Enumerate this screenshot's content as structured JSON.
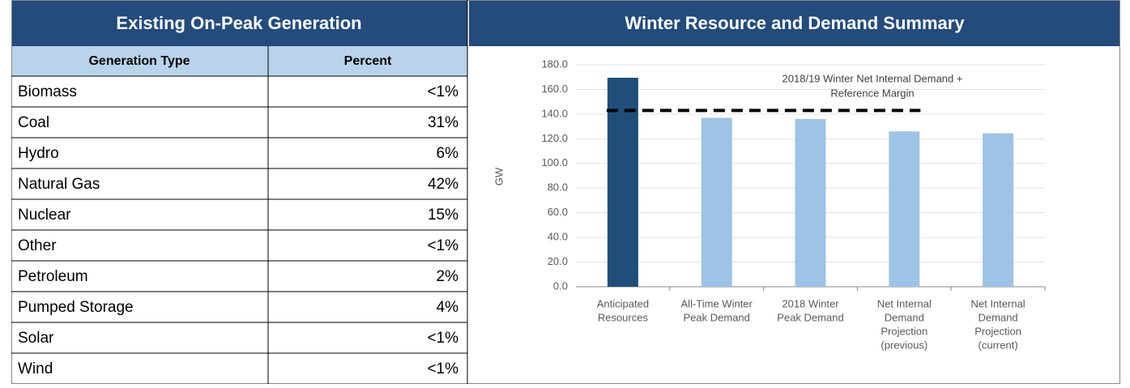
{
  "table": {
    "title": "Existing On-Peak Generation",
    "columns": [
      "Generation Type",
      "Percent"
    ],
    "rows": [
      [
        "Biomass",
        "<1%"
      ],
      [
        "Coal",
        "31%"
      ],
      [
        "Hydro",
        "6%"
      ],
      [
        "Natural Gas",
        "42%"
      ],
      [
        "Nuclear",
        "15%"
      ],
      [
        "Other",
        "<1%"
      ],
      [
        "Petroleum",
        "2%"
      ],
      [
        "Pumped Storage",
        "4%"
      ],
      [
        "Solar",
        "<1%"
      ],
      [
        "Wind",
        "<1%"
      ]
    ]
  },
  "chart_data": {
    "type": "bar",
    "title": "Winter Resource and Demand Summary",
    "y_label": "GW",
    "categories": [
      [
        "Anticipated",
        "Resources"
      ],
      [
        "All-Time Winter",
        "Peak Demand"
      ],
      [
        "2018 Winter",
        "Peak Demand"
      ],
      [
        "Net Internal",
        "Demand",
        "Projection",
        "(previous)"
      ],
      [
        "Net Internal",
        "Demand",
        "Projection",
        "(current)"
      ]
    ],
    "values": [
      169.5,
      137,
      136,
      126,
      124.5
    ],
    "colors": [
      "#1f4e79",
      "#9dc3e6",
      "#9dc3e6",
      "#9dc3e6",
      "#9dc3e6"
    ],
    "reference_line": {
      "value": 143,
      "label": [
        "2018/19 Winter Net Internal Demand +",
        "Reference Margin"
      ]
    },
    "ylim": [
      0,
      180
    ],
    "yticks": [
      {
        "value": 0,
        "label": "0.0"
      },
      {
        "value": 20,
        "label": "20.0"
      },
      {
        "value": 40,
        "label": "40.0"
      },
      {
        "value": 60,
        "label": "60.0"
      },
      {
        "value": 80,
        "label": "80.0"
      },
      {
        "value": 100,
        "label": "100.0"
      },
      {
        "value": 120,
        "label": "120.0"
      },
      {
        "value": 140,
        "label": "140.0"
      },
      {
        "value": 160,
        "label": "160.0"
      },
      {
        "value": 180,
        "label": "180.0"
      }
    ],
    "grid": true
  }
}
